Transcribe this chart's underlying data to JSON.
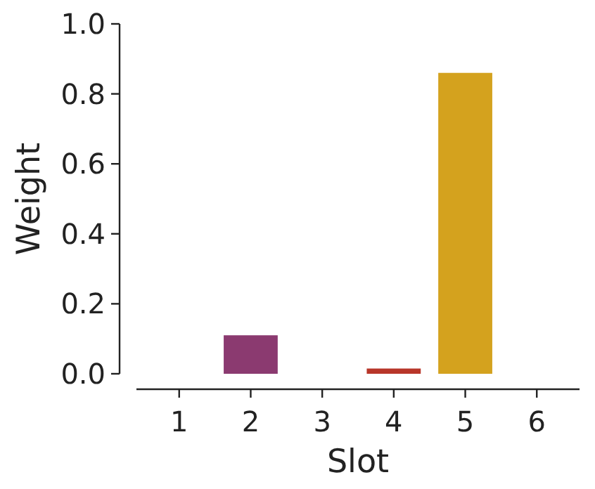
{
  "chart_data": {
    "type": "bar",
    "xlabel": "Slot",
    "ylabel": "Weight",
    "categories": [
      "1",
      "2",
      "3",
      "4",
      "5",
      "6"
    ],
    "values": [
      0,
      0.11,
      0,
      0.015,
      0.86,
      0
    ],
    "colors": [
      "#3b2a6b",
      "#8b3a70",
      "#d0603a",
      "#b8362a",
      "#d4a21e",
      "#4a8a5a"
    ],
    "ylim": [
      0,
      1
    ],
    "yticks": [
      {
        "value": 0,
        "label": "0.0"
      },
      {
        "value": 0.2,
        "label": "0.2"
      },
      {
        "value": 0.4,
        "label": "0.4"
      },
      {
        "value": 0.6,
        "label": "0.6"
      },
      {
        "value": 0.8,
        "label": "0.8"
      },
      {
        "value": 1,
        "label": "1.0"
      }
    ],
    "grid": false
  }
}
